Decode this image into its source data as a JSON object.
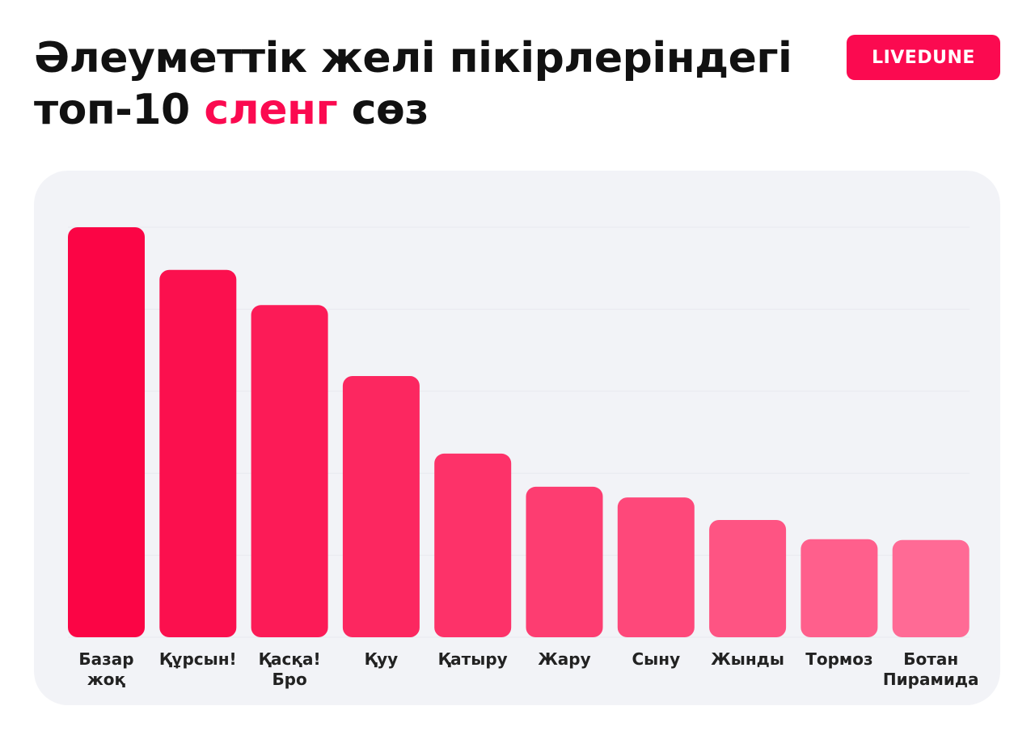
{
  "header": {
    "title_line1": "Әлеуметтік желі пікірлеріндегі",
    "title_line2_prefix": "топ-10 ",
    "title_line2_accent": "сленг",
    "title_line2_suffix": " сөз",
    "logo_text": "LIVEDUNE"
  },
  "colors": {
    "accent": "#fb0a50",
    "bar_start": "#fb0545",
    "bar_end": "#ff6a95",
    "panel_bg": "#f2f3f7"
  },
  "chart_data": {
    "type": "bar",
    "categories": [
      "Базар жоқ",
      "Құрсын!",
      "Қасқа! Бро",
      "Қуу",
      "Қатыру",
      "Жару",
      "Сыну",
      "Жынды",
      "Тормоз",
      "Ботан Пирамида"
    ],
    "category_lines": [
      [
        "Базар",
        "жоқ"
      ],
      [
        "Құрсын!"
      ],
      [
        "Қасқа!",
        "Бро"
      ],
      [
        "Қуу"
      ],
      [
        "Қатыру"
      ],
      [
        "Жару"
      ],
      [
        "Сыну"
      ],
      [
        "Жынды"
      ],
      [
        "Тормоз"
      ],
      [
        "Ботан",
        "Пирамида"
      ]
    ],
    "values": [
      100,
      89.6,
      81.0,
      63.7,
      44.8,
      36.7,
      34.1,
      28.6,
      23.9,
      23.7
    ],
    "ylim": [
      0,
      100
    ],
    "grid": true,
    "title": "",
    "xlabel": "",
    "ylabel": ""
  }
}
